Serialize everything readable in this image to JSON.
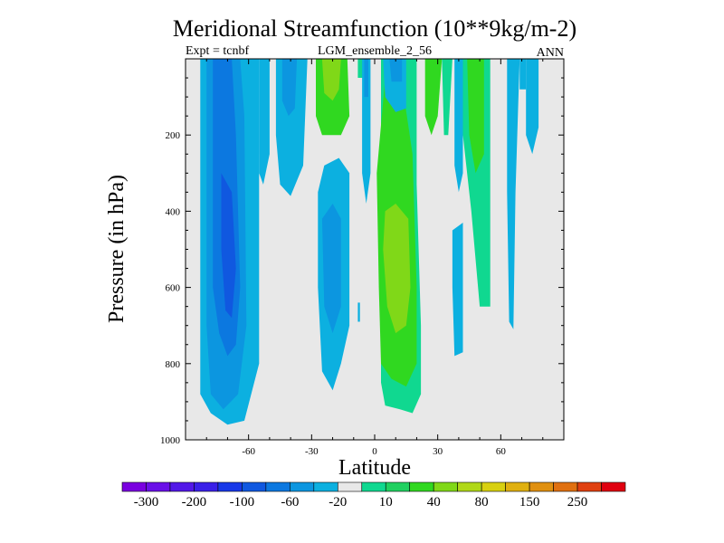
{
  "chart_data": {
    "type": "contour",
    "title": "Meridional Streamfunction (10**9kg/m-2)",
    "subtitle_left": "Expt = tcnbf",
    "subtitle_center": "LGM_ensemble_2_56",
    "subtitle_right": "ANN",
    "xlabel": "Latitude",
    "ylabel": "Pressure (in hPa)",
    "xlim": [
      -90,
      90
    ],
    "ylim": [
      0,
      1000
    ],
    "y_inverted": true,
    "x_ticks": [
      {
        "value": -60,
        "label": "-60"
      },
      {
        "value": -30,
        "label": "-30"
      },
      {
        "value": 0,
        "label": "0"
      },
      {
        "value": 30,
        "label": "30"
      },
      {
        "value": 60,
        "label": "60"
      }
    ],
    "y_ticks": [
      {
        "value": 200,
        "label": "200"
      },
      {
        "value": 400,
        "label": "400"
      },
      {
        "value": 600,
        "label": "600"
      },
      {
        "value": 800,
        "label": "800"
      },
      {
        "value": 1000,
        "label": "1000"
      }
    ],
    "background_color": "#e8e8e8",
    "colorbar": {
      "colors": [
        "#7a00e0",
        "#6a10e8",
        "#5218e8",
        "#3a20e8",
        "#1838e8",
        "#1058e0",
        "#0c78e0",
        "#0c96e0",
        "#0cb0e0",
        "#e8e8e8",
        "#10d890",
        "#20d060",
        "#30d820",
        "#80d818",
        "#b0d818",
        "#d8d010",
        "#e0b010",
        "#e09010",
        "#e07010",
        "#e04010",
        "#e00010"
      ],
      "labels": [
        {
          "edge": 1,
          "text": "-300"
        },
        {
          "edge": 3,
          "text": "-200"
        },
        {
          "edge": 5,
          "text": "-100"
        },
        {
          "edge": 7,
          "text": "-60"
        },
        {
          "edge": 9,
          "text": "-20"
        },
        {
          "edge": 11,
          "text": "10"
        },
        {
          "edge": 13,
          "text": "40"
        },
        {
          "edge": 15,
          "text": "80"
        },
        {
          "edge": 17,
          "text": "150"
        },
        {
          "edge": 19,
          "text": "250"
        }
      ]
    },
    "regions": [
      {
        "name": "sh-cell-outer",
        "color": "#0cb0e0",
        "points": [
          [
            -83,
            0
          ],
          [
            -55,
            0
          ],
          [
            -55,
            800
          ],
          [
            -62,
            950
          ],
          [
            -70,
            960
          ],
          [
            -78,
            930
          ],
          [
            -83,
            880
          ]
        ]
      },
      {
        "name": "sh-cell-level2",
        "color": "#0c96e0",
        "points": [
          [
            -80,
            0
          ],
          [
            -64,
            0
          ],
          [
            -62,
            150
          ],
          [
            -61,
            700
          ],
          [
            -65,
            880
          ],
          [
            -72,
            920
          ],
          [
            -78,
            880
          ],
          [
            -80,
            700
          ]
        ]
      },
      {
        "name": "sh-cell-level3",
        "color": "#0c78e0",
        "points": [
          [
            -77,
            0
          ],
          [
            -68,
            0
          ],
          [
            -66,
            200
          ],
          [
            -64,
            600
          ],
          [
            -66,
            750
          ],
          [
            -70,
            780
          ],
          [
            -74,
            720
          ],
          [
            -77,
            600
          ]
        ]
      },
      {
        "name": "sh-cell-core",
        "color": "#1058e0",
        "points": [
          [
            -73,
            300
          ],
          [
            -68,
            350
          ],
          [
            -66,
            550
          ],
          [
            -68,
            680
          ],
          [
            -71,
            660
          ],
          [
            -73,
            500
          ]
        ]
      },
      {
        "name": "sh-mid-band-a",
        "color": "#0cb0e0",
        "points": [
          [
            -55,
            0
          ],
          [
            -50,
            0
          ],
          [
            -50,
            250
          ],
          [
            -53,
            330
          ],
          [
            -55,
            300
          ]
        ]
      },
      {
        "name": "sh-mid-band-b",
        "color": "#0cb0e0",
        "points": [
          [
            -47,
            0
          ],
          [
            -32,
            0
          ],
          [
            -34,
            280
          ],
          [
            -40,
            360
          ],
          [
            -45,
            330
          ],
          [
            -47,
            200
          ]
        ]
      },
      {
        "name": "sh-mid-band-b-inner",
        "color": "#0c96e0",
        "points": [
          [
            -44,
            0
          ],
          [
            -37,
            0
          ],
          [
            -38,
            130
          ],
          [
            -41,
            150
          ],
          [
            -44,
            110
          ]
        ]
      },
      {
        "name": "subtropic-green-outer",
        "color": "#30d820",
        "points": [
          [
            -28,
            0
          ],
          [
            -13,
            0
          ],
          [
            -12,
            150
          ],
          [
            -16,
            200
          ],
          [
            -25,
            200
          ],
          [
            -28,
            150
          ]
        ]
      },
      {
        "name": "subtropic-green-inner",
        "color": "#80d818",
        "points": [
          [
            -25,
            0
          ],
          [
            -16,
            0
          ],
          [
            -17,
            80
          ],
          [
            -20,
            110
          ],
          [
            -24,
            90
          ]
        ]
      },
      {
        "name": "subtropic-green-small",
        "color": "#10d890",
        "points": [
          [
            -8,
            0
          ],
          [
            -5,
            0
          ],
          [
            -5,
            50
          ],
          [
            -8,
            50
          ]
        ]
      },
      {
        "name": "tropic-blue-column",
        "color": "#0cb0e0",
        "points": [
          [
            -27,
            350
          ],
          [
            -24,
            280
          ],
          [
            -17,
            260
          ],
          [
            -12,
            300
          ],
          [
            -12,
            700
          ],
          [
            -16,
            800
          ],
          [
            -20,
            870
          ],
          [
            -25,
            820
          ],
          [
            -27,
            600
          ]
        ]
      },
      {
        "name": "tropic-blue-column-inner",
        "color": "#0c96e0",
        "points": [
          [
            -25,
            420
          ],
          [
            -20,
            380
          ],
          [
            -16,
            420
          ],
          [
            -16,
            650
          ],
          [
            -20,
            720
          ],
          [
            -24,
            650
          ]
        ]
      },
      {
        "name": "eq-blue-thin",
        "color": "#0cb0e0",
        "points": [
          [
            -6,
            0
          ],
          [
            -2,
            0
          ],
          [
            -2,
            300
          ],
          [
            -4,
            380
          ],
          [
            -6,
            300
          ]
        ]
      },
      {
        "name": "eq-blue-thin-inner",
        "color": "#0c96e0",
        "points": [
          [
            -5,
            0
          ],
          [
            -3,
            0
          ],
          [
            -3,
            100
          ],
          [
            -5,
            100
          ]
        ]
      },
      {
        "name": "eq-blue-dot",
        "color": "#0cb0e0",
        "points": [
          [
            -8,
            640
          ],
          [
            -7,
            640
          ],
          [
            -7,
            690
          ],
          [
            -8,
            690
          ]
        ]
      },
      {
        "name": "nh-green-teal-outer",
        "color": "#10d890",
        "points": [
          [
            3,
            0
          ],
          [
            20,
            0
          ],
          [
            20,
            330
          ],
          [
            22,
            700
          ],
          [
            22,
            880
          ],
          [
            18,
            930
          ],
          [
            12,
            920
          ],
          [
            5,
            910
          ],
          [
            3,
            850
          ]
        ]
      },
      {
        "name": "nh-green-mid",
        "color": "#30d820",
        "points": [
          [
            5,
            50
          ],
          [
            14,
            100
          ],
          [
            18,
            250
          ],
          [
            20,
            600
          ],
          [
            20,
            800
          ],
          [
            15,
            860
          ],
          [
            8,
            840
          ],
          [
            3,
            800
          ],
          [
            2,
            600
          ],
          [
            1,
            300
          ]
        ]
      },
      {
        "name": "nh-green-core",
        "color": "#80d818",
        "points": [
          [
            5,
            400
          ],
          [
            10,
            380
          ],
          [
            16,
            420
          ],
          [
            17,
            600
          ],
          [
            15,
            700
          ],
          [
            10,
            720
          ],
          [
            6,
            650
          ],
          [
            4,
            500
          ]
        ]
      },
      {
        "name": "nh-upper-blue",
        "color": "#0cb0e0",
        "points": [
          [
            4,
            0
          ],
          [
            15,
            0
          ],
          [
            15,
            130
          ],
          [
            10,
            140
          ],
          [
            5,
            100
          ]
        ]
      },
      {
        "name": "nh-upper-blue-inner",
        "color": "#0c96e0",
        "points": [
          [
            7,
            0
          ],
          [
            13,
            0
          ],
          [
            13,
            60
          ],
          [
            8,
            60
          ]
        ]
      },
      {
        "name": "nh-mid-green-strip",
        "color": "#30d820",
        "points": [
          [
            24,
            0
          ],
          [
            32,
            0
          ],
          [
            30,
            150
          ],
          [
            27,
            200
          ],
          [
            24,
            150
          ]
        ]
      },
      {
        "name": "nh-mid-teal",
        "color": "#10d890",
        "points": [
          [
            32,
            0
          ],
          [
            37,
            0
          ],
          [
            35,
            200
          ],
          [
            33,
            200
          ]
        ]
      },
      {
        "name": "nh-outer-green",
        "color": "#10d890",
        "points": [
          [
            40,
            0
          ],
          [
            55,
            0
          ],
          [
            55,
            650
          ],
          [
            50,
            650
          ],
          [
            46,
            400
          ],
          [
            42,
            200
          ]
        ]
      },
      {
        "name": "nh-outer-green-inner",
        "color": "#30d820",
        "points": [
          [
            44,
            0
          ],
          [
            52,
            0
          ],
          [
            52,
            250
          ],
          [
            48,
            300
          ],
          [
            45,
            200
          ]
        ]
      },
      {
        "name": "nh-blue-column",
        "color": "#0cb0e0",
        "points": [
          [
            38,
            0
          ],
          [
            42,
            0
          ],
          [
            42,
            300
          ],
          [
            40,
            350
          ],
          [
            38,
            280
          ]
        ]
      },
      {
        "name": "nh-mid-blue-pocket",
        "color": "#0cb0e0",
        "points": [
          [
            37,
            450
          ],
          [
            42,
            430
          ],
          [
            42,
            770
          ],
          [
            38,
            780
          ],
          [
            37,
            600
          ]
        ]
      },
      {
        "name": "nh-polar-blue-a",
        "color": "#0cb0e0",
        "points": [
          [
            63,
            0
          ],
          [
            69,
            0
          ],
          [
            67,
            350
          ],
          [
            66,
            710
          ],
          [
            64,
            690
          ],
          [
            63,
            350
          ]
        ]
      },
      {
        "name": "nh-polar-blue-b",
        "color": "#0cb0e0",
        "points": [
          [
            72,
            0
          ],
          [
            78,
            0
          ],
          [
            78,
            180
          ],
          [
            75,
            250
          ],
          [
            72,
            200
          ]
        ]
      },
      {
        "name": "nh-polar-blue-c",
        "color": "#0cb0e0",
        "points": [
          [
            69,
            0
          ],
          [
            72,
            0
          ],
          [
            72,
            80
          ],
          [
            69,
            80
          ]
        ]
      }
    ]
  }
}
